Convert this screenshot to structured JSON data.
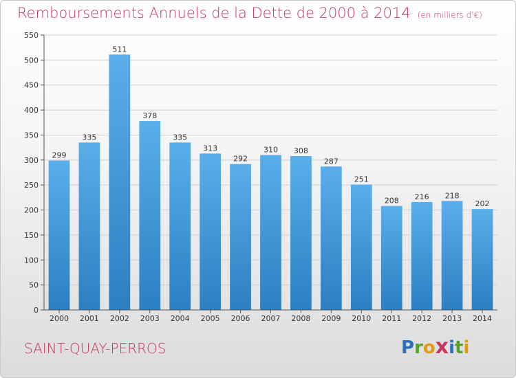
{
  "header": {
    "title": "Remboursements Annuels de la Dette de 2000 à 2014",
    "subtitle": "(en milliers d'€)"
  },
  "footer": {
    "commune": "SAINT-QUAY-PERROS",
    "logo_letters": [
      "P",
      "r",
      "o",
      "x",
      "i",
      "t",
      "i"
    ]
  },
  "colors": {
    "title": "#c8375f",
    "bar_top": "#5aaeea",
    "bar_bottom": "#2c7fc1"
  },
  "chart_data": {
    "type": "bar",
    "title": "Remboursements Annuels de la Dette de 2000 à 2014",
    "subtitle": "(en milliers d'€)",
    "xlabel": "",
    "ylabel": "",
    "categories": [
      "2000",
      "2001",
      "2002",
      "2003",
      "2004",
      "2005",
      "2006",
      "2007",
      "2008",
      "2009",
      "2010",
      "2011",
      "2012",
      "2013",
      "2014"
    ],
    "values": [
      299,
      335,
      511,
      378,
      335,
      313,
      292,
      310,
      308,
      287,
      251,
      208,
      216,
      218,
      202
    ],
    "ylim": [
      0,
      550
    ],
    "yticks": [
      0,
      50,
      100,
      150,
      200,
      250,
      300,
      350,
      400,
      450,
      500,
      550
    ],
    "grid": true,
    "legend": "none"
  }
}
